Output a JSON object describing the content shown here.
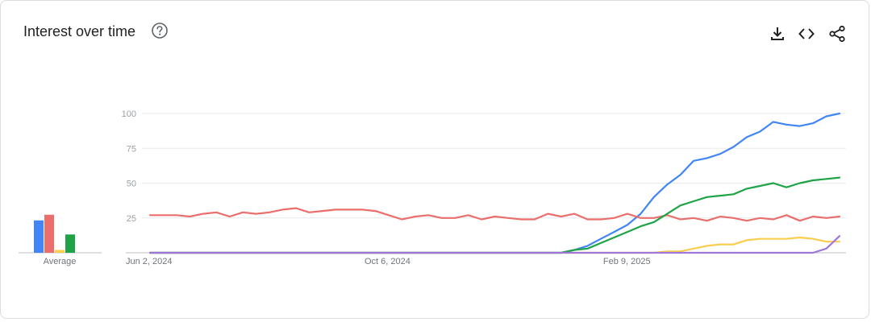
{
  "header": {
    "title": "Interest over time",
    "help_icon": "help-circle-icon",
    "actions": [
      {
        "name": "download",
        "icon": "download-icon"
      },
      {
        "name": "embed",
        "icon": "code-icon"
      },
      {
        "name": "share",
        "icon": "share-icon"
      }
    ]
  },
  "chart_data": [
    {
      "type": "bar",
      "xlabel": "Average",
      "categories": [
        "Average"
      ],
      "series": [
        {
          "color": "#4285f4",
          "values": [
            23
          ]
        },
        {
          "color": "#ea6e6b",
          "values": [
            27
          ]
        },
        {
          "color": "#fbcd4d",
          "values": [
            2
          ]
        },
        {
          "color": "#1ea446",
          "values": [
            13
          ]
        }
      ],
      "ylim": [
        0,
        100
      ]
    },
    {
      "type": "line",
      "ylim": [
        0,
        100
      ],
      "yticks": [
        "100",
        "75",
        "50",
        "25"
      ],
      "x_tick_labels": [
        {
          "label": "Jun 2, 2024",
          "index": 0
        },
        {
          "label": "Oct 6, 2024",
          "index": 18
        },
        {
          "label": "Feb 9, 2025",
          "index": 36
        }
      ],
      "grid": true,
      "series": [
        {
          "color": "#4285f4",
          "values": [
            0,
            0,
            0,
            0,
            0,
            0,
            0,
            0,
            0,
            0,
            0,
            0,
            0,
            0,
            0,
            0,
            0,
            0,
            0,
            0,
            0,
            0,
            0,
            0,
            0,
            0,
            0,
            0,
            0,
            0,
            0,
            0,
            2,
            5,
            10,
            15,
            20,
            28,
            40,
            49,
            56,
            66,
            68,
            71,
            76,
            83,
            87,
            94,
            92,
            91,
            93,
            98,
            100
          ]
        },
        {
          "color": "#ea6e6b",
          "values": [
            27,
            27,
            27,
            26,
            28,
            29,
            26,
            29,
            28,
            29,
            31,
            32,
            29,
            30,
            31,
            31,
            31,
            30,
            27,
            24,
            26,
            27,
            25,
            25,
            27,
            24,
            26,
            25,
            24,
            24,
            28,
            26,
            28,
            24,
            24,
            25,
            28,
            25,
            25,
            27,
            24,
            25,
            23,
            26,
            25,
            23,
            25,
            24,
            27,
            23,
            26,
            25,
            26
          ]
        },
        {
          "color": "#fbcd4d",
          "values": [
            0,
            0,
            0,
            0,
            0,
            0,
            0,
            0,
            0,
            0,
            0,
            0,
            0,
            0,
            0,
            0,
            0,
            0,
            0,
            0,
            0,
            0,
            0,
            0,
            0,
            0,
            0,
            0,
            0,
            0,
            0,
            0,
            0,
            0,
            0,
            0,
            0,
            0,
            0,
            1,
            1,
            3,
            5,
            6,
            6,
            9,
            10,
            10,
            10,
            11,
            10,
            8,
            8
          ]
        },
        {
          "color": "#1ea446",
          "values": [
            0,
            0,
            0,
            0,
            0,
            0,
            0,
            0,
            0,
            0,
            0,
            0,
            0,
            0,
            0,
            0,
            0,
            0,
            0,
            0,
            0,
            0,
            0,
            0,
            0,
            0,
            0,
            0,
            0,
            0,
            0,
            0,
            2,
            3,
            7,
            11,
            15,
            19,
            22,
            28,
            34,
            37,
            40,
            41,
            42,
            46,
            48,
            50,
            47,
            50,
            52,
            53,
            54
          ]
        },
        {
          "color": "#9e77d8",
          "values": [
            0,
            0,
            0,
            0,
            0,
            0,
            0,
            0,
            0,
            0,
            0,
            0,
            0,
            0,
            0,
            0,
            0,
            0,
            0,
            0,
            0,
            0,
            0,
            0,
            0,
            0,
            0,
            0,
            0,
            0,
            0,
            0,
            0,
            0,
            0,
            0,
            0,
            0,
            0,
            0,
            0,
            0,
            0,
            0,
            0,
            0,
            0,
            0,
            0,
            0,
            0,
            3,
            12
          ]
        }
      ]
    }
  ]
}
